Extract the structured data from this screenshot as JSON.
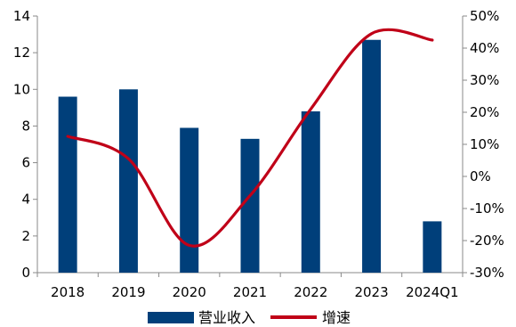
{
  "chart_data": {
    "type": "bar",
    "categories": [
      "2018",
      "2019",
      "2020",
      "2021",
      "2022",
      "2023",
      "2024Q1"
    ],
    "series": [
      {
        "name": "营业收入",
        "type": "bar",
        "axis": "left",
        "values": [
          9.6,
          10.0,
          7.9,
          7.3,
          8.8,
          12.7,
          2.8
        ],
        "color": "#003f7a"
      },
      {
        "name": "增速",
        "type": "line",
        "axis": "right",
        "smooth": true,
        "values": [
          12.5,
          5.5,
          -21.5,
          -6.0,
          21.0,
          44.5,
          42.5
        ],
        "color": "#c00018"
      }
    ],
    "y_left": {
      "min": 0,
      "max": 14,
      "ticks": [
        0,
        2,
        4,
        6,
        8,
        10,
        12,
        14
      ],
      "tick_labels": [
        "0",
        "2",
        "4",
        "6",
        "8",
        "10",
        "12",
        "14"
      ]
    },
    "y_right": {
      "min": -30,
      "max": 50,
      "ticks": [
        -30,
        -20,
        -10,
        0,
        10,
        20,
        30,
        40,
        50
      ],
      "tick_labels": [
        "-30%",
        "-20%",
        "-10%",
        "0%",
        "10%",
        "20%",
        "30%",
        "40%",
        "50%"
      ]
    },
    "grid": false,
    "legend": "bottom-center"
  }
}
